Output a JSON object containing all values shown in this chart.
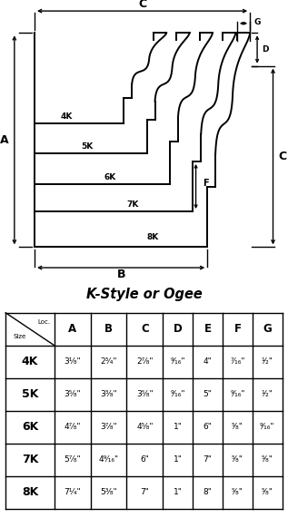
{
  "title": "K-Style or Ogee",
  "bg_color": "#ffffff",
  "table": {
    "col_headers": [
      "A",
      "B",
      "C",
      "D",
      "E",
      "F",
      "G"
    ],
    "row_headers": [
      "4K",
      "5K",
      "6K",
      "7K",
      "8K"
    ],
    "data": [
      [
        "3¹⁄₈\"",
        "2³⁄₄\"",
        "2⁷⁄₈\"",
        "⁹⁄₁₆\"",
        "4\"",
        "⁷⁄₁₆\"",
        "¹⁄₂\""
      ],
      [
        "3⁵⁄₈\"",
        "3³⁄₈\"",
        "3⁵⁄₈\"",
        "⁹⁄₁₆\"",
        "5\"",
        "⁹⁄₁₆\"",
        "¹⁄₂\""
      ],
      [
        "4⁷⁄₈\"",
        "3⁷⁄₈\"",
        "4⁵⁄₈\"",
        "1\"",
        "6\"",
        "⁵⁄₈\"",
        "⁹⁄₁₆\""
      ],
      [
        "5⁷⁄₈\"",
        "4⁹⁄₁₆\"",
        "6\"",
        "1\"",
        "7\"",
        "⁵⁄₈\"",
        "⁵⁄₈\""
      ],
      [
        "7¹⁄₄\"",
        "5³⁄₈\"",
        "7\"",
        "1\"",
        "8\"",
        "⁵⁄₈\"",
        "⁵⁄₈\""
      ]
    ]
  }
}
